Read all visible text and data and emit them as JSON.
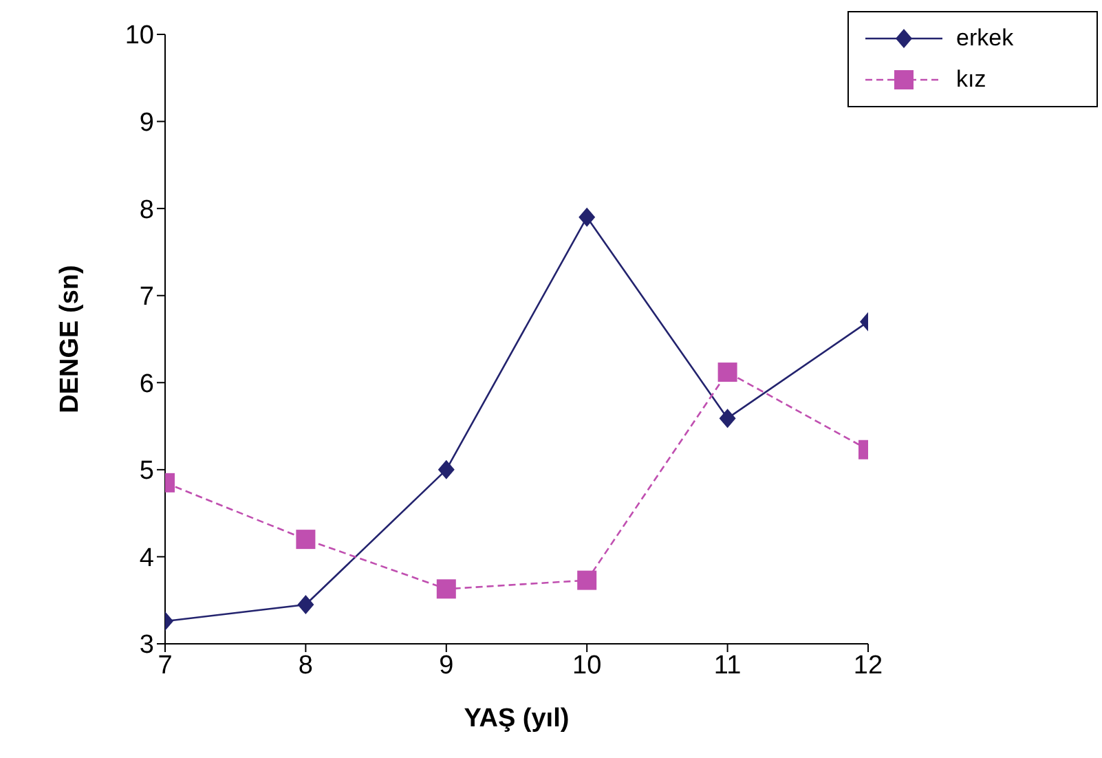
{
  "chart_data": {
    "type": "line",
    "xlabel": "YAŞ (yıl)",
    "ylabel": "DENGE (sn)",
    "x": [
      7,
      8,
      9,
      10,
      11,
      12
    ],
    "series": [
      {
        "name": "erkek",
        "color": "#23236e",
        "values": [
          3.26,
          3.45,
          5.0,
          7.9,
          5.59,
          6.7
        ],
        "marker": "diamond",
        "line_style": "solid"
      },
      {
        "name": "kız",
        "color": "#c04fb0",
        "values": [
          4.85,
          4.2,
          3.63,
          3.73,
          6.12,
          5.23
        ],
        "marker": "square",
        "line_style": "dashed"
      }
    ],
    "xlim": [
      7,
      12
    ],
    "xticks": [
      7,
      8,
      9,
      10,
      11,
      12
    ],
    "ylim": [
      3,
      10
    ],
    "yticks": [
      3,
      4,
      5,
      6,
      7,
      8,
      9,
      10
    ],
    "grid": false,
    "legend": "top right"
  }
}
